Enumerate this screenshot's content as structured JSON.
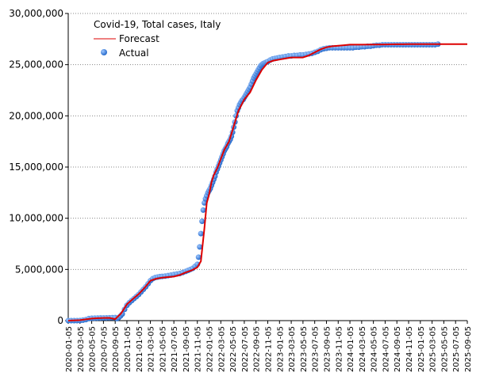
{
  "chart_data": {
    "type": "line",
    "title": "Covid-19, Total cases, Italy",
    "xlabel": "",
    "ylabel": "",
    "ylim": [
      0,
      30000000
    ],
    "y_ticks": [
      0,
      5000000,
      10000000,
      15000000,
      20000000,
      25000000,
      30000000
    ],
    "y_tick_labels": [
      "0",
      "5,000,000",
      "10,000,000",
      "15,000,000",
      "20,000,000",
      "25,000,000",
      "30,000,000"
    ],
    "x_tick_labels": [
      "2020-01-05",
      "2020-03-05",
      "2020-05-05",
      "2020-07-05",
      "2020-09-05",
      "2020-11-05",
      "2021-01-05",
      "2021-03-05",
      "2021-05-05",
      "2021-07-05",
      "2021-09-05",
      "2021-11-05",
      "2022-01-05",
      "2022-03-05",
      "2022-05-05",
      "2022-07-05",
      "2022-09-05",
      "2022-11-05",
      "2023-01-05",
      "2023-03-05",
      "2023-05-05",
      "2023-07-05",
      "2023-09-05",
      "2023-11-05",
      "2024-01-05",
      "2024-03-05",
      "2024-05-05",
      "2024-07-05",
      "2024-09-05",
      "2024-11-05",
      "2025-01-05",
      "2025-03-05",
      "2025-05-05",
      "2025-07-05",
      "2025-09-05"
    ],
    "grid": {
      "horizontal": true,
      "vertical": false,
      "style": "dotted"
    },
    "legend": {
      "placement": "top-left"
    },
    "colors": {
      "forecast": "#dd0000",
      "actual": "#1e64c8",
      "actual_highlight": "#a0c8ff",
      "grid": "#888888"
    },
    "series": [
      {
        "name": "Forecast",
        "kind": "line",
        "x": [
          0,
          1,
          2,
          2.5,
          3,
          3.5,
          4,
          4.5,
          5,
          5.5,
          6,
          6.5,
          7,
          7.5,
          8,
          8.5,
          9,
          9.5,
          10,
          10.5,
          11,
          11.3,
          11.6,
          11.8,
          12,
          12.2,
          12.4,
          12.7,
          13,
          13.3,
          13.7,
          14,
          14.5,
          15,
          15.5,
          16,
          16.5,
          17,
          17.5,
          18,
          18.5,
          19,
          19.5,
          20,
          20.5,
          21,
          21.5,
          22,
          22.5,
          23,
          23.5,
          24,
          24.5,
          25,
          26,
          27,
          28,
          29,
          30,
          31,
          32,
          33,
          34
        ],
        "values": [
          0,
          50000,
          200000,
          240000,
          260000,
          270000,
          150000,
          700000,
          1600000,
          2100000,
          2600000,
          3200000,
          3900000,
          4100000,
          4200000,
          4250000,
          4300000,
          4450000,
          4700000,
          4900000,
          5200000,
          5800000,
          9000000,
          11500000,
          12300000,
          13500000,
          14200000,
          14900000,
          15800000,
          16700000,
          17500000,
          18600000,
          20500000,
          21600000,
          22300000,
          23500000,
          24500000,
          25200000,
          25400000,
          25500000,
          25600000,
          25700000,
          25700000,
          25700000,
          25900000,
          26200000,
          26500000,
          26700000,
          26800000,
          26850000,
          26900000,
          26950000,
          26950000,
          26950000,
          26970000,
          26980000,
          26990000,
          27000000,
          27000000,
          27000000,
          27000000,
          27000000,
          27000000
        ]
      },
      {
        "name": "Actual",
        "kind": "scatter",
        "x": [
          0,
          0.25,
          0.5,
          0.75,
          1,
          1.25,
          1.5,
          1.75,
          2,
          2.25,
          2.5,
          2.75,
          3,
          3.25,
          3.5,
          3.75,
          4,
          4.15,
          4.3,
          4.45,
          4.6,
          4.8,
          5,
          5.2,
          5.4,
          5.6,
          5.8,
          6,
          6.2,
          6.4,
          6.6,
          6.8,
          7,
          7.2,
          7.4,
          7.6,
          7.8,
          8,
          8.25,
          8.5,
          8.75,
          9,
          9.25,
          9.5,
          9.75,
          10,
          10.2,
          10.4,
          10.6,
          10.8,
          11,
          11.1,
          11.2,
          11.3,
          11.4,
          11.5,
          11.6,
          11.7,
          11.8,
          11.9,
          12,
          12.1,
          12.2,
          12.3,
          12.4,
          12.5,
          12.6,
          12.7,
          12.8,
          12.9,
          13,
          13.1,
          13.2,
          13.3,
          13.4,
          13.5,
          13.6,
          13.7,
          13.8,
          13.9,
          14,
          14.1,
          14.2,
          14.3,
          14.4,
          14.5,
          14.6,
          14.7,
          14.8,
          14.9,
          15,
          15.1,
          15.2,
          15.3,
          15.4,
          15.5,
          15.6,
          15.7,
          15.8,
          15.9,
          16,
          16.1,
          16.2,
          16.3,
          16.4,
          16.5,
          16.6,
          16.7,
          16.8,
          16.9,
          17,
          17.2,
          17.4,
          17.6,
          17.8,
          18,
          18.25,
          18.5,
          18.75,
          19,
          19.25,
          19.5,
          19.75,
          20,
          20.25,
          20.5,
          20.75,
          21,
          21.25,
          21.5,
          21.75,
          22,
          22.25,
          22.5,
          22.75,
          23,
          23.25,
          23.5,
          23.75,
          24,
          24.25,
          24.5,
          24.75,
          25,
          25.25,
          25.5,
          25.75,
          26,
          26.25,
          26.5,
          26.75,
          27,
          27.25,
          27.5,
          27.75,
          28,
          28.25,
          28.5,
          28.75,
          29,
          29.25,
          29.5,
          29.75,
          30,
          30.25,
          30.5,
          30.75,
          31,
          31.25,
          31.5
        ],
        "values": [
          0,
          0,
          0,
          0,
          10000,
          50000,
          100000,
          200000,
          230000,
          240000,
          250000,
          260000,
          265000,
          270000,
          280000,
          290000,
          300000,
          200000,
          300000,
          450000,
          650000,
          1100000,
          1500000,
          1750000,
          1950000,
          2150000,
          2350000,
          2550000,
          2800000,
          3050000,
          3300000,
          3600000,
          3900000,
          4100000,
          4200000,
          4250000,
          4300000,
          4320000,
          4350000,
          4400000,
          4450000,
          4500000,
          4550000,
          4600000,
          4700000,
          4800000,
          4900000,
          5000000,
          5100000,
          5300000,
          5500000,
          6200000,
          7200000,
          8500000,
          9700000,
          10800000,
          11500000,
          11900000,
          12200000,
          12500000,
          12700000,
          12900000,
          13200000,
          13500000,
          13800000,
          14100000,
          14500000,
          14800000,
          15100000,
          15400000,
          15700000,
          16000000,
          16300000,
          16600000,
          16800000,
          17000000,
          17300000,
          17500000,
          17700000,
          18000000,
          18400000,
          18900000,
          19400000,
          20000000,
          20500000,
          20800000,
          21100000,
          21300000,
          21500000,
          21600000,
          21800000,
          22000000,
          22200000,
          22400000,
          22600000,
          22800000,
          23100000,
          23400000,
          23700000,
          23900000,
          24100000,
          24300000,
          24500000,
          24700000,
          24900000,
          25000000,
          25100000,
          25150000,
          25200000,
          25250000,
          25300000,
          25450000,
          25550000,
          25600000,
          25650000,
          25700000,
          25750000,
          25800000,
          25850000,
          25850000,
          25900000,
          25900000,
          25950000,
          25950000,
          26000000,
          26050000,
          26100000,
          26200000,
          26300000,
          26450000,
          26550000,
          26600000,
          26650000,
          26650000,
          26650000,
          26650000,
          26650000,
          26650000,
          26650000,
          26650000,
          26650000,
          26700000,
          26700000,
          26750000,
          26750000,
          26800000,
          26800000,
          26850000,
          26900000,
          26900000,
          26950000,
          26950000,
          26950000,
          26950000,
          26950000,
          26950000,
          26950000,
          26950000,
          26950000,
          26950000,
          26950000,
          26950000,
          26950000,
          26950000,
          26950000,
          26950000,
          26950000,
          26950000,
          26950000,
          27000000
        ]
      }
    ]
  }
}
